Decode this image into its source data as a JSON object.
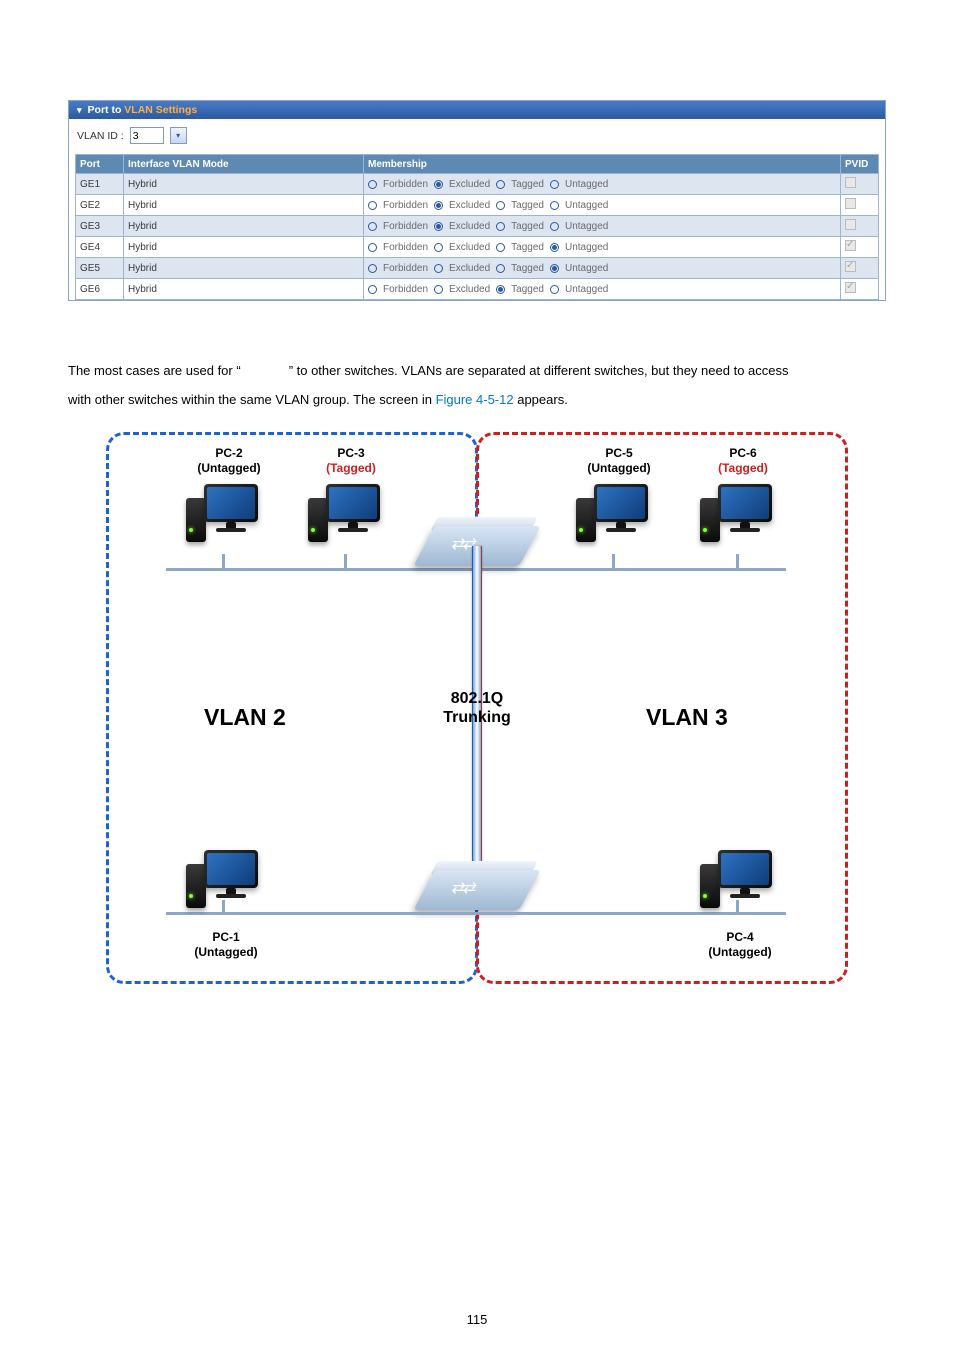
{
  "panel": {
    "title_prefix": "Port to ",
    "title_highlight": "VLAN Settings",
    "vlan_id_label": "VLAN ID :",
    "vlan_id_value": "3",
    "columns": {
      "port": "Port",
      "mode": "Interface VLAN Mode",
      "membership": "Membership",
      "pvid": "PVID"
    },
    "membership_options": [
      "Forbidden",
      "Excluded",
      "Tagged",
      "Untagged"
    ],
    "rows": [
      {
        "port": "GE1",
        "mode": "Hybrid",
        "selected": 1,
        "pvid_enabled": false,
        "pvid_checked": false,
        "odd": true
      },
      {
        "port": "GE2",
        "mode": "Hybrid",
        "selected": 1,
        "pvid_enabled": false,
        "pvid_checked": false,
        "odd": false
      },
      {
        "port": "GE3",
        "mode": "Hybrid",
        "selected": 1,
        "pvid_enabled": false,
        "pvid_checked": false,
        "odd": true
      },
      {
        "port": "GE4",
        "mode": "Hybrid",
        "selected": 3,
        "pvid_enabled": false,
        "pvid_checked": true,
        "odd": false
      },
      {
        "port": "GE5",
        "mode": "Hybrid",
        "selected": 3,
        "pvid_enabled": false,
        "pvid_checked": true,
        "odd": true
      },
      {
        "port": "GE6",
        "mode": "Hybrid",
        "selected": 2,
        "pvid_enabled": false,
        "pvid_checked": true,
        "odd": false
      }
    ]
  },
  "body": {
    "line1a": "The most cases are used for “",
    "line1b": "” to other switches. VLANs are separated at different switches, but they need to access",
    "line2a": "with other switches within the same VLAN group. The screen in ",
    "figref": "Figure 4-5-12",
    "line2b": " appears."
  },
  "diagram": {
    "colors": {
      "blue": "#1e62d0",
      "red": "#d01e1e"
    },
    "pc2": {
      "title": "PC-2",
      "sub": "(Untagged)"
    },
    "pc3": {
      "title": "PC-3",
      "sub": "(Tagged)",
      "subcolor": "red"
    },
    "pc5": {
      "title": "PC-5",
      "sub": "(Untagged)"
    },
    "pc6": {
      "title": "PC-6",
      "sub": "(Tagged)",
      "subcolor": "red"
    },
    "pc1": {
      "title": "PC-1",
      "sub": "(Untagged)"
    },
    "pc4": {
      "title": "PC-4",
      "sub": "(Untagged)"
    },
    "vlan2": "VLAN 2",
    "vlan3": "VLAN 3",
    "trunk": "802.1Q\nTrunking"
  },
  "page_number": "115"
}
